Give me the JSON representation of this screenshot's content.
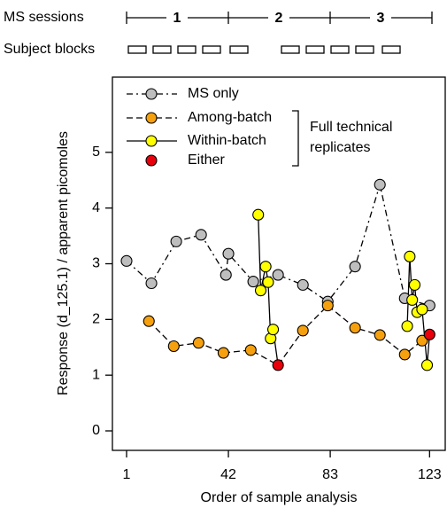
{
  "top": {
    "sessions_label": "MS sessions",
    "sessions": [
      "1",
      "2",
      "3"
    ],
    "blocks_label": "Subject blocks"
  },
  "chart_data": {
    "type": "line",
    "x_label": "Order of sample analysis",
    "y_label": "Response (d_125.1) / apparent picomoles",
    "xlim": [
      -4.7,
      129.3
    ],
    "ylim": [
      -0.35,
      6.35
    ],
    "xticks": [
      1,
      42,
      83,
      123
    ],
    "yticks": [
      0,
      1,
      2,
      3,
      4,
      5
    ],
    "annotation": [
      "Full technical",
      "replicates"
    ],
    "series": [
      {
        "name": "MS only",
        "color": "#bebebe",
        "line": "dash-dot",
        "x": [
          1,
          11,
          21,
          31,
          41,
          42,
          52,
          62,
          72,
          82,
          93,
          103,
          113,
          123
        ],
        "values": [
          3.05,
          2.65,
          3.4,
          3.52,
          2.8,
          3.18,
          2.68,
          2.8,
          2.62,
          2.32,
          2.95,
          4.42,
          2.38,
          2.25
        ]
      },
      {
        "name": "Among-batch",
        "color": "#f5a00f",
        "line": "dashed",
        "x": [
          10,
          20,
          30,
          40,
          51,
          72,
          82,
          93,
          103,
          113,
          120
        ],
        "values": [
          1.97,
          1.52,
          1.58,
          1.4,
          1.45,
          1.8,
          2.25,
          1.85,
          1.72,
          1.37,
          1.62
        ]
      },
      {
        "name": "Within-batch",
        "color": "#ffff00",
        "line": "solid",
        "x": [
          54,
          55,
          57,
          58,
          59,
          60,
          114,
          115,
          116,
          117,
          118,
          120,
          122
        ],
        "values": [
          3.88,
          2.52,
          2.95,
          2.67,
          1.66,
          1.82,
          1.88,
          3.13,
          2.35,
          2.62,
          2.13,
          2.18,
          1.18
        ]
      },
      {
        "name": "Either",
        "color": "#e8000b",
        "line": "none",
        "x": [
          62,
          123
        ],
        "values": [
          1.18,
          1.73
        ]
      }
    ]
  }
}
